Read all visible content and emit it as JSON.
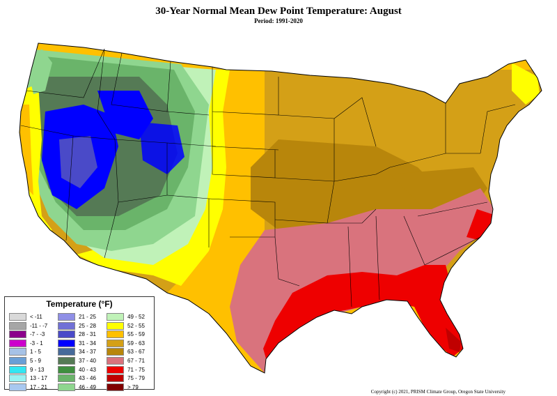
{
  "header": {
    "title": "30-Year Normal Mean Dew Point Temperature: August",
    "period": "Period: 1991-2020"
  },
  "legend": {
    "title": "Temperature (°F)",
    "items": [
      {
        "label": "< -11",
        "color": "#d9d9d9"
      },
      {
        "label": "-11 - -7",
        "color": "#a6a6a6"
      },
      {
        "label": "-7 - -3",
        "color": "#8b008b"
      },
      {
        "label": "-3 - 1",
        "color": "#cc00cc"
      },
      {
        "label": "1 - 5",
        "color": "#a6c2e6"
      },
      {
        "label": "5 - 9",
        "color": "#6a9fd6"
      },
      {
        "label": "9 - 13",
        "color": "#33e6f2"
      },
      {
        "label": "13 - 17",
        "color": "#99f2f2"
      },
      {
        "label": "17 - 21",
        "color": "#a8c8f0"
      },
      {
        "label": "21 - 25",
        "color": "#8f8fe6"
      },
      {
        "label": "25 - 28",
        "color": "#7070d6"
      },
      {
        "label": "28 - 31",
        "color": "#4a4ac8"
      },
      {
        "label": "31 - 34",
        "color": "#0000ff"
      },
      {
        "label": "34 - 37",
        "color": "#466a9a"
      },
      {
        "label": "37 - 40",
        "color": "#557a55"
      },
      {
        "label": "40 - 43",
        "color": "#3f8f3f"
      },
      {
        "label": "43 - 46",
        "color": "#6ab46a"
      },
      {
        "label": "46 - 49",
        "color": "#8fd68f"
      },
      {
        "label": "49 - 52",
        "color": "#c0f2b8"
      },
      {
        "label": "52 - 55",
        "color": "#ffff00"
      },
      {
        "label": "55 - 59",
        "color": "#ffc000"
      },
      {
        "label": "59 - 63",
        "color": "#d4a017"
      },
      {
        "label": "63 - 67",
        "color": "#b8860b"
      },
      {
        "label": "67 - 71",
        "color": "#d9737d"
      },
      {
        "label": "71 - 75",
        "color": "#ee0000"
      },
      {
        "label": "75 - 79",
        "color": "#c00000"
      },
      {
        "label": "> 79",
        "color": "#800000"
      }
    ]
  },
  "footer": {
    "copyright": "Copyright (c) 2021, PRISM Climate Group, Oregon State University"
  }
}
